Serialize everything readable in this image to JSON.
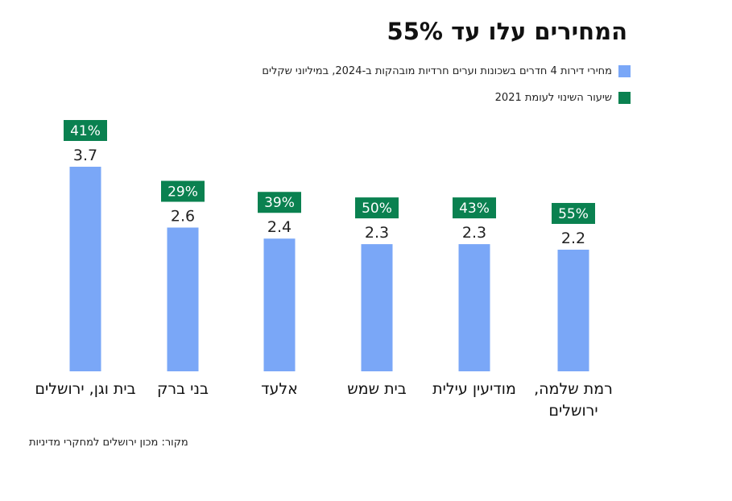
{
  "title": "המחירים עלו עד 55%",
  "legend": [
    {
      "label": "מחירי דירות 4 חדרים בשכונות וערים חרדיות מובהקות ב-2024, במיליוני שקלים",
      "color": "#7aa7f7"
    },
    {
      "label": "שיעור השינוי לעומת 2021",
      "color": "#0a8150"
    }
  ],
  "source": "מקור: מכון ירושלים למחקרי מדיניות",
  "chart_data": {
    "type": "bar",
    "categories": [
      "בית וגן, ירושלים",
      "בני ברק",
      "אלעד",
      "בית שמש",
      "מודיעין עילית",
      "רמת שלמה, ירושלים"
    ],
    "category_lines": [
      [
        "בית וגן, ירושלים"
      ],
      [
        "בני ברק"
      ],
      [
        "אלעד"
      ],
      [
        "בית שמש"
      ],
      [
        "מודיעין עילית"
      ],
      [
        "רמת שלמה,",
        "ירושלים"
      ]
    ],
    "series": [
      {
        "name": "מחירי דירות 4 חדרים בשכונות וערים חרדיות מובהקות ב-2024, במיליוני שקלים",
        "values": [
          3.7,
          2.6,
          2.4,
          2.3,
          2.3,
          2.2
        ],
        "color": "#7aa7f7"
      },
      {
        "name": "שיעור השינוי לעומת 2021",
        "values": [
          41,
          29,
          39,
          50,
          43,
          55
        ],
        "color": "#0a8150"
      }
    ],
    "value_labels": [
      "3.7",
      "2.6",
      "2.4",
      "2.3",
      "2.3",
      "2.2"
    ],
    "change_labels": [
      "41%",
      "29%",
      "39%",
      "50%",
      "43%",
      "55%"
    ],
    "ylim": [
      0,
      3.7
    ],
    "grid": false,
    "legend_position": "top-right"
  }
}
